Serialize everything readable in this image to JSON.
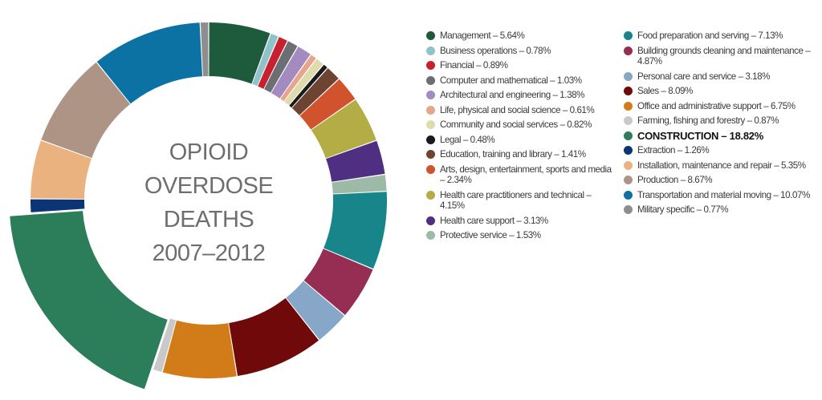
{
  "chart_data": {
    "type": "pie",
    "style": "donut",
    "title_lines": [
      "OPIOID",
      "OVERDOSE",
      "DEATHS",
      "2007–2012"
    ],
    "exploded_slice": "Construction",
    "slices": [
      {
        "name": "Management",
        "value": 5.64,
        "label": "Management – 5.64%",
        "color": "#1e5a3c"
      },
      {
        "name": "Business operations",
        "value": 0.78,
        "label": "Business operations – 0.78%",
        "color": "#8fc2c9"
      },
      {
        "name": "Financial",
        "value": 0.89,
        "label": "Financial – 0.89%",
        "color": "#c8202e"
      },
      {
        "name": "Computer and mathematical",
        "value": 1.03,
        "label": "Computer and mathematical  – 1.03%",
        "color": "#6b6f73"
      },
      {
        "name": "Architectural and engineering",
        "value": 1.38,
        "label": "Architectural and engineering – 1.38%",
        "color": "#a38bbf"
      },
      {
        "name": "Life, physical and social science",
        "value": 0.61,
        "label": "Life, physical and social science – 0.61%",
        "color": "#e8a58c"
      },
      {
        "name": "Community and social services",
        "value": 0.82,
        "label": "Community and social services – 0.82%",
        "color": "#dedcac"
      },
      {
        "name": "Legal",
        "value": 0.48,
        "label": "Legal – 0.48%",
        "color": "#1a1a1a"
      },
      {
        "name": "Education, training and library",
        "value": 1.41,
        "label": "Education, training and library – 1.41%",
        "color": "#6d4332"
      },
      {
        "name": "Arts, design, entertainment, sports and media",
        "value": 2.34,
        "label": "Arts, design, entertainment, sports and media – 2.34%",
        "color": "#d0532d"
      },
      {
        "name": "Health care practitioners and technical",
        "value": 4.15,
        "label": "Health care practitioners and technical – 4.15%",
        "color": "#b4ac45"
      },
      {
        "name": "Health care support",
        "value": 3.13,
        "label": "Health care support – 3.13%",
        "color": "#4e2f82"
      },
      {
        "name": "Protective service",
        "value": 1.53,
        "label": "Protective service – 1.53%",
        "color": "#9dbaa7"
      },
      {
        "name": "Food preparation and serving",
        "value": 7.13,
        "label": "Food preparation and serving – 7.13%",
        "color": "#17858a"
      },
      {
        "name": "Building grounds cleaning and maintenance",
        "value": 4.87,
        "label": "Building grounds cleaning and maintenance – 4.87%",
        "color": "#962d52"
      },
      {
        "name": "Personal care and service",
        "value": 3.18,
        "label": "Personal care and service – 3.18%",
        "color": "#86a7c8"
      },
      {
        "name": "Sales",
        "value": 8.09,
        "label": "Sales – 8.09%",
        "color": "#700a0a"
      },
      {
        "name": "Office and administrative support",
        "value": 6.75,
        "label": "Office and administrative support – 6.75%",
        "color": "#d17c19"
      },
      {
        "name": "Farming, fishing and forestry",
        "value": 0.87,
        "label": "Farming, fishing and forestry – 0.87%",
        "color": "#c9c9c9"
      },
      {
        "name": "Construction",
        "value": 18.82,
        "label": "CONSTRUCTION – 18.82%",
        "color": "#2c7d5a"
      },
      {
        "name": "Extraction",
        "value": 1.26,
        "label": "Extraction – 1.26%",
        "color": "#0b3575"
      },
      {
        "name": "Installation, maintenance and repair",
        "value": 5.35,
        "label": "Installation, maintenance and repair – 5.35%",
        "color": "#e9b27f"
      },
      {
        "name": "Production",
        "value": 8.67,
        "label": "Production – 8.67%",
        "color": "#ae9484"
      },
      {
        "name": "Transportation and material moving",
        "value": 10.07,
        "label": "Transportation and material moving – 10.07%",
        "color": "#0c72a3"
      },
      {
        "name": "Military specific",
        "value": 0.77,
        "label": "Military specific – 0.77%",
        "color": "#8e8e8e"
      }
    ],
    "legend_columns": [
      [
        "Management",
        "Business operations",
        "Financial",
        "Computer and mathematical",
        "Architectural and engineering",
        "Life, physical and social science",
        "Community and social services",
        "Legal",
        "Education, training and library",
        "Arts, design, entertainment, sports and media",
        "Health care practitioners and technical",
        "Health care support",
        "Protective service"
      ],
      [
        "Food preparation and serving",
        "Building grounds cleaning and maintenance",
        "Personal care and service",
        "Sales",
        "Office and administrative support",
        "Farming, fishing and forestry",
        "Construction",
        "Extraction",
        "Installation, maintenance and repair",
        "Production",
        "Transportation and material moving",
        "Military specific"
      ]
    ],
    "legend_placement": "right"
  }
}
